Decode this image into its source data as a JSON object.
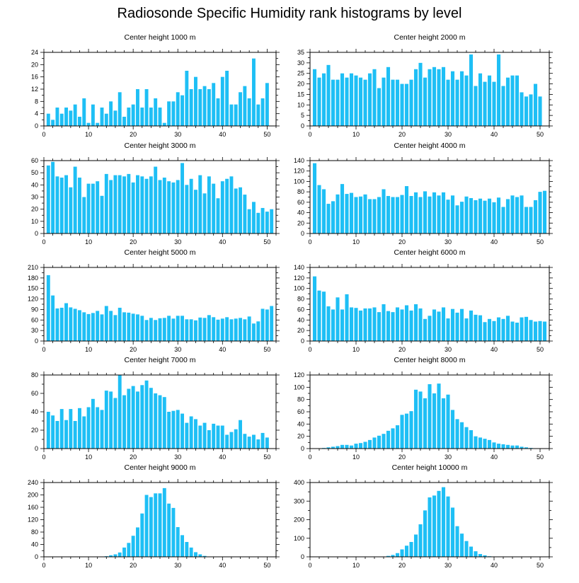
{
  "title": "Radiosonde Specific Humidity rank histograms by level",
  "bar_color": "#1EBFF5",
  "chart_data": [
    {
      "type": "bar",
      "title": "Center height 1000 m",
      "xlim": [
        0,
        52
      ],
      "ylim": [
        0,
        24
      ],
      "x_ticks": [
        0,
        10,
        20,
        30,
        40,
        50
      ],
      "y_ticks": [
        0,
        4,
        8,
        12,
        16,
        20,
        24
      ],
      "values": [
        4,
        2,
        6,
        4,
        6,
        5,
        7,
        3,
        9,
        1,
        7,
        1,
        6,
        4,
        8,
        5,
        11,
        3,
        6,
        7,
        12,
        6,
        12,
        6,
        9,
        6,
        1,
        8,
        8,
        11,
        10,
        18,
        12,
        16,
        12,
        13,
        12,
        14,
        9,
        16,
        18,
        7,
        7,
        11,
        13,
        9,
        22,
        7,
        9,
        14,
        0
      ]
    },
    {
      "type": "bar",
      "title": "Center height 2000 m",
      "xlim": [
        0,
        52
      ],
      "ylim": [
        0,
        35
      ],
      "x_ticks": [
        0,
        10,
        20,
        30,
        40,
        50
      ],
      "y_ticks": [
        0,
        5,
        10,
        15,
        20,
        25,
        30,
        35
      ],
      "values": [
        27,
        23,
        25,
        29,
        22,
        22,
        25,
        23,
        25,
        24,
        23,
        22,
        25,
        27,
        18,
        23,
        28,
        22,
        22,
        20,
        20,
        22,
        27,
        30,
        23,
        27,
        28,
        27,
        28,
        22,
        26,
        22,
        26,
        24,
        34,
        19,
        25,
        21,
        24,
        21,
        34,
        19,
        23,
        24,
        24,
        16,
        14,
        15,
        20,
        14,
        0
      ]
    },
    {
      "type": "bar",
      "title": "Center height 3000 m",
      "xlim": [
        0,
        52
      ],
      "ylim": [
        0,
        60
      ],
      "x_ticks": [
        0,
        10,
        20,
        30,
        40,
        50
      ],
      "y_ticks": [
        0,
        10,
        20,
        30,
        40,
        50,
        60
      ],
      "values": [
        56,
        59,
        47,
        46,
        48,
        38,
        55,
        46,
        30,
        41,
        41,
        43,
        31,
        49,
        44,
        48,
        48,
        47,
        49,
        42,
        48,
        47,
        45,
        47,
        55,
        44,
        46,
        43,
        42,
        44,
        58,
        40,
        45,
        36,
        48,
        33,
        47,
        41,
        29,
        43,
        45,
        47,
        37,
        38,
        32,
        20,
        26,
        17,
        21,
        18,
        20
      ]
    },
    {
      "type": "bar",
      "title": "Center height 4000 m",
      "xlim": [
        0,
        52
      ],
      "ylim": [
        0,
        140
      ],
      "x_ticks": [
        0,
        10,
        20,
        30,
        40,
        50
      ],
      "y_ticks": [
        0,
        20,
        40,
        60,
        80,
        100,
        120,
        140
      ],
      "values": [
        135,
        93,
        85,
        57,
        62,
        75,
        95,
        76,
        78,
        70,
        71,
        75,
        66,
        66,
        70,
        85,
        72,
        70,
        70,
        74,
        91,
        72,
        79,
        70,
        81,
        71,
        79,
        73,
        79,
        65,
        73,
        54,
        61,
        71,
        68,
        64,
        67,
        63,
        67,
        60,
        69,
        51,
        66,
        73,
        70,
        73,
        51,
        51,
        64,
        80,
        82
      ]
    },
    {
      "type": "bar",
      "title": "Center height 5000 m",
      "xlim": [
        0,
        52
      ],
      "ylim": [
        0,
        210
      ],
      "x_ticks": [
        0,
        10,
        20,
        30,
        40,
        50
      ],
      "y_ticks": [
        0,
        30,
        60,
        90,
        120,
        150,
        180,
        210
      ],
      "values": [
        188,
        130,
        93,
        95,
        108,
        96,
        92,
        88,
        82,
        77,
        80,
        86,
        76,
        100,
        86,
        74,
        95,
        82,
        81,
        78,
        76,
        72,
        60,
        66,
        60,
        65,
        66,
        72,
        64,
        72,
        72,
        62,
        62,
        59,
        67,
        66,
        74,
        68,
        61,
        64,
        68,
        62,
        64,
        66,
        62,
        70,
        50,
        56,
        92,
        90,
        100
      ]
    },
    {
      "type": "bar",
      "title": "Center height 6000 m",
      "xlim": [
        0,
        52
      ],
      "ylim": [
        0,
        140
      ],
      "x_ticks": [
        0,
        10,
        20,
        30,
        40,
        50
      ],
      "y_ticks": [
        0,
        20,
        40,
        60,
        80,
        100,
        120,
        140
      ],
      "values": [
        123,
        96,
        94,
        66,
        60,
        83,
        60,
        89,
        64,
        63,
        58,
        62,
        62,
        64,
        55,
        70,
        57,
        55,
        64,
        60,
        68,
        58,
        70,
        62,
        42,
        48,
        60,
        56,
        64,
        43,
        61,
        54,
        61,
        43,
        58,
        50,
        49,
        36,
        42,
        38,
        45,
        42,
        48,
        37,
        35,
        45,
        46,
        40,
        37,
        38,
        37
      ]
    },
    {
      "type": "bar",
      "title": "Center height 7000 m",
      "xlim": [
        0,
        52
      ],
      "ylim": [
        0,
        80
      ],
      "x_ticks": [
        0,
        10,
        20,
        30,
        40,
        50
      ],
      "y_ticks": [
        0,
        20,
        40,
        60,
        80
      ],
      "values": [
        40,
        36,
        30,
        43,
        31,
        43,
        30,
        44,
        35,
        45,
        54,
        45,
        42,
        63,
        62,
        55,
        80,
        58,
        65,
        68,
        62,
        69,
        74,
        66,
        60,
        58,
        56,
        40,
        41,
        42,
        38,
        28,
        35,
        32,
        25,
        28,
        20,
        27,
        25,
        25,
        15,
        18,
        21,
        31,
        16,
        13,
        15,
        10,
        17,
        12,
        0
      ]
    },
    {
      "type": "bar",
      "title": "Center height 8000 m",
      "xlim": [
        0,
        52
      ],
      "ylim": [
        0,
        120
      ],
      "x_ticks": [
        0,
        10,
        20,
        30,
        40,
        50
      ],
      "y_ticks": [
        0,
        20,
        40,
        60,
        80,
        100,
        120
      ],
      "values": [
        0,
        0,
        1,
        2,
        3,
        4,
        6,
        6,
        5,
        8,
        9,
        11,
        14,
        18,
        21,
        24,
        29,
        33,
        38,
        55,
        57,
        61,
        96,
        93,
        82,
        105,
        90,
        106,
        82,
        88,
        63,
        48,
        43,
        35,
        30,
        20,
        18,
        16,
        14,
        10,
        8,
        7,
        6,
        5,
        5,
        3,
        2,
        1,
        0,
        0,
        0
      ]
    },
    {
      "type": "bar",
      "title": "Center height 9000 m",
      "xlim": [
        0,
        52
      ],
      "ylim": [
        0,
        240
      ],
      "x_ticks": [
        0,
        10,
        20,
        30,
        40,
        50
      ],
      "y_ticks": [
        0,
        40,
        80,
        120,
        160,
        200,
        240
      ],
      "values": [
        0,
        0,
        0,
        0,
        0,
        0,
        0,
        0,
        0,
        0,
        0,
        0,
        0,
        2,
        5,
        8,
        14,
        30,
        45,
        68,
        95,
        140,
        200,
        193,
        205,
        205,
        222,
        172,
        158,
        96,
        70,
        48,
        30,
        15,
        8,
        3,
        1,
        0,
        0,
        0,
        0,
        0,
        0,
        0,
        0,
        0,
        0,
        0,
        0,
        0,
        0
      ]
    },
    {
      "type": "bar",
      "title": "Center height 10000 m",
      "xlim": [
        0,
        52
      ],
      "ylim": [
        0,
        400
      ],
      "x_ticks": [
        0,
        10,
        20,
        30,
        40,
        50
      ],
      "y_ticks": [
        0,
        100,
        200,
        300,
        400
      ],
      "values": [
        0,
        0,
        0,
        0,
        0,
        0,
        0,
        0,
        0,
        0,
        0,
        0,
        0,
        0,
        0,
        0,
        5,
        10,
        20,
        40,
        60,
        80,
        120,
        175,
        250,
        320,
        330,
        355,
        375,
        325,
        265,
        165,
        125,
        85,
        55,
        30,
        15,
        8,
        3,
        1,
        0,
        0,
        0,
        0,
        0,
        0,
        0,
        0,
        0,
        0,
        0
      ]
    }
  ]
}
